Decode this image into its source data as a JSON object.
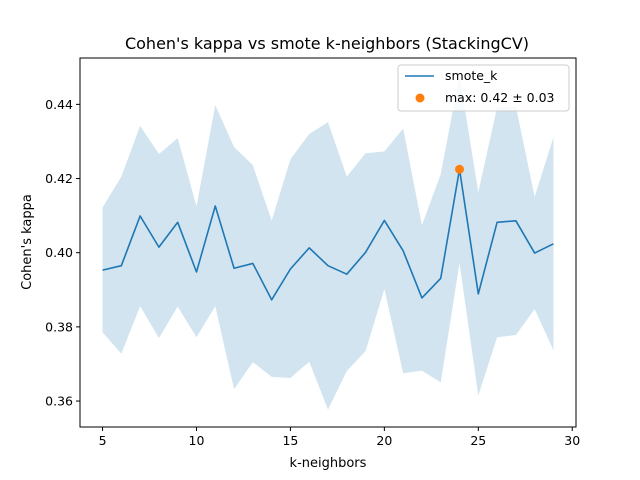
{
  "chart_data": {
    "type": "line",
    "title": "Cohen's kappa vs smote k-neighbors (StackingCV)",
    "xlabel": "k-neighbors",
    "ylabel": "Cohen's kappa",
    "xlim": [
      3.8,
      30.2
    ],
    "ylim": [
      0.353,
      0.4525
    ],
    "xticks": [
      5,
      10,
      15,
      20,
      25,
      30
    ],
    "yticks": [
      0.36,
      0.38,
      0.4,
      0.42,
      0.44
    ],
    "x": [
      5,
      6,
      7,
      8,
      9,
      10,
      11,
      12,
      13,
      14,
      15,
      16,
      17,
      18,
      19,
      20,
      21,
      22,
      23,
      24,
      25,
      26,
      27,
      28,
      29
    ],
    "series": [
      {
        "name": "smote_k",
        "color": "#1f77b4",
        "values": [
          0.3953,
          0.3965,
          0.4099,
          0.4015,
          0.4082,
          0.3948,
          0.4126,
          0.3958,
          0.3971,
          0.3873,
          0.3956,
          0.4013,
          0.3965,
          0.3942,
          0.4001,
          0.4087,
          0.4005,
          0.3878,
          0.3931,
          0.4225,
          0.3889,
          0.4082,
          0.4086,
          0.3999,
          0.4024
        ],
        "band_lower": [
          0.3785,
          0.3728,
          0.3856,
          0.377,
          0.3855,
          0.3772,
          0.3856,
          0.3632,
          0.3705,
          0.3665,
          0.3662,
          0.3706,
          0.3577,
          0.3681,
          0.3735,
          0.3902,
          0.3675,
          0.3682,
          0.365,
          0.3972,
          0.3615,
          0.3772,
          0.3778,
          0.3848,
          0.3737
        ],
        "band_upper": [
          0.4122,
          0.4205,
          0.4342,
          0.4266,
          0.4309,
          0.4125,
          0.4398,
          0.4285,
          0.4236,
          0.4086,
          0.4252,
          0.432,
          0.4352,
          0.4205,
          0.4268,
          0.4273,
          0.4335,
          0.4074,
          0.4212,
          0.4478,
          0.4163,
          0.4392,
          0.4394,
          0.4151,
          0.4311
        ],
        "band_color": "#b9d5e8"
      }
    ],
    "max_point": {
      "x": 24,
      "y": 0.4225,
      "color": "#ff7f0e",
      "label": "max: 0.42 ± 0.03"
    },
    "legend": {
      "placement": "top-right",
      "entries": [
        "smote_k",
        "max: 0.42 ± 0.03"
      ]
    },
    "grid": false
  }
}
